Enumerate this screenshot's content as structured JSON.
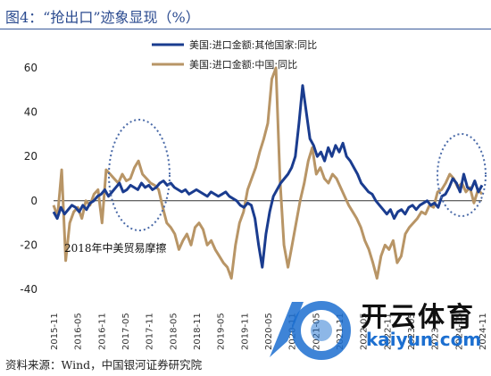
{
  "header": {
    "title": "图4：“抢出口”迹象显现（%）"
  },
  "source": {
    "text": "资料来源：Wind，中国银河证券研究院"
  },
  "watermark": {
    "logo_text_cn": "开云体育",
    "logo_text_en": "kaiyun.com"
  },
  "annotation": {
    "text": "2018年中美贸易摩擦"
  },
  "colors": {
    "series_1": "#1a3c8f",
    "series_2": "#b89566",
    "ellipse": "#4a6aa8"
  },
  "chart_data": {
    "type": "line",
    "title": "",
    "xlabel": "",
    "ylabel": "",
    "ylim": [
      -40,
      60
    ],
    "yticks": [
      -40,
      -20,
      0,
      20,
      40,
      60
    ],
    "x_tick_labels": [
      "2015-11",
      "2016-05",
      "2016-11",
      "2017-05",
      "2017-11",
      "2018-05",
      "2018-11",
      "2019-05",
      "2019-11",
      "2020-05",
      "2020-11",
      "2021-05",
      "2021-11",
      "2022-05",
      "2022-11",
      "2023-05",
      "2023-11",
      "2024-05",
      "2024-11"
    ],
    "legend_position": "top",
    "grid": false,
    "series": [
      {
        "name": "美国:进口金额:其他国家:同比",
        "values": [
          -5,
          -8,
          -3,
          -6,
          -4,
          -2,
          -3,
          -5,
          -2,
          -4,
          -1,
          0,
          2,
          3,
          5,
          2,
          4,
          6,
          8,
          4,
          5,
          7,
          6,
          5,
          8,
          6,
          7,
          5,
          6,
          8,
          9,
          7,
          8,
          6,
          5,
          4,
          5,
          3,
          4,
          5,
          4,
          3,
          2,
          4,
          3,
          2,
          3,
          4,
          2,
          1,
          0,
          -2,
          -3,
          -1,
          -2,
          -8,
          -20,
          -30,
          -15,
          -5,
          2,
          5,
          8,
          10,
          12,
          15,
          20,
          35,
          52,
          40,
          28,
          25,
          20,
          22,
          18,
          24,
          20,
          25,
          22,
          26,
          20,
          18,
          15,
          12,
          8,
          6,
          4,
          3,
          0,
          -2,
          -4,
          -6,
          -4,
          -8,
          -5,
          -4,
          -6,
          -3,
          -2,
          -4,
          -2,
          -1,
          0,
          -2,
          -1,
          -3,
          2,
          3,
          6,
          10,
          8,
          4,
          12,
          6,
          5,
          9,
          4,
          7
        ]
      },
      {
        "name": "美国:进口金额:中国:同比",
        "values": [
          -2,
          -7,
          14,
          -27,
          -10,
          -5,
          -3,
          -8,
          0,
          -2,
          3,
          5,
          -10,
          14,
          12,
          10,
          8,
          12,
          9,
          10,
          15,
          18,
          12,
          10,
          8,
          7,
          5,
          -3,
          -10,
          -12,
          -15,
          -22,
          -18,
          -15,
          -20,
          -12,
          -10,
          -13,
          -20,
          -18,
          -22,
          -25,
          -28,
          -30,
          -35,
          -20,
          -10,
          -5,
          5,
          10,
          15,
          22,
          28,
          35,
          55,
          60,
          10,
          -20,
          -30,
          -20,
          -10,
          0,
          8,
          18,
          24,
          12,
          15,
          10,
          8,
          12,
          10,
          6,
          2,
          -2,
          -5,
          -8,
          -12,
          -18,
          -22,
          -28,
          -35,
          -25,
          -20,
          -22,
          -18,
          -28,
          -25,
          -15,
          -12,
          -10,
          -8,
          -5,
          -6,
          -2,
          -3,
          4,
          5,
          8,
          12,
          10,
          6,
          8,
          4,
          6,
          -1,
          5,
          3
        ]
      }
    ]
  }
}
